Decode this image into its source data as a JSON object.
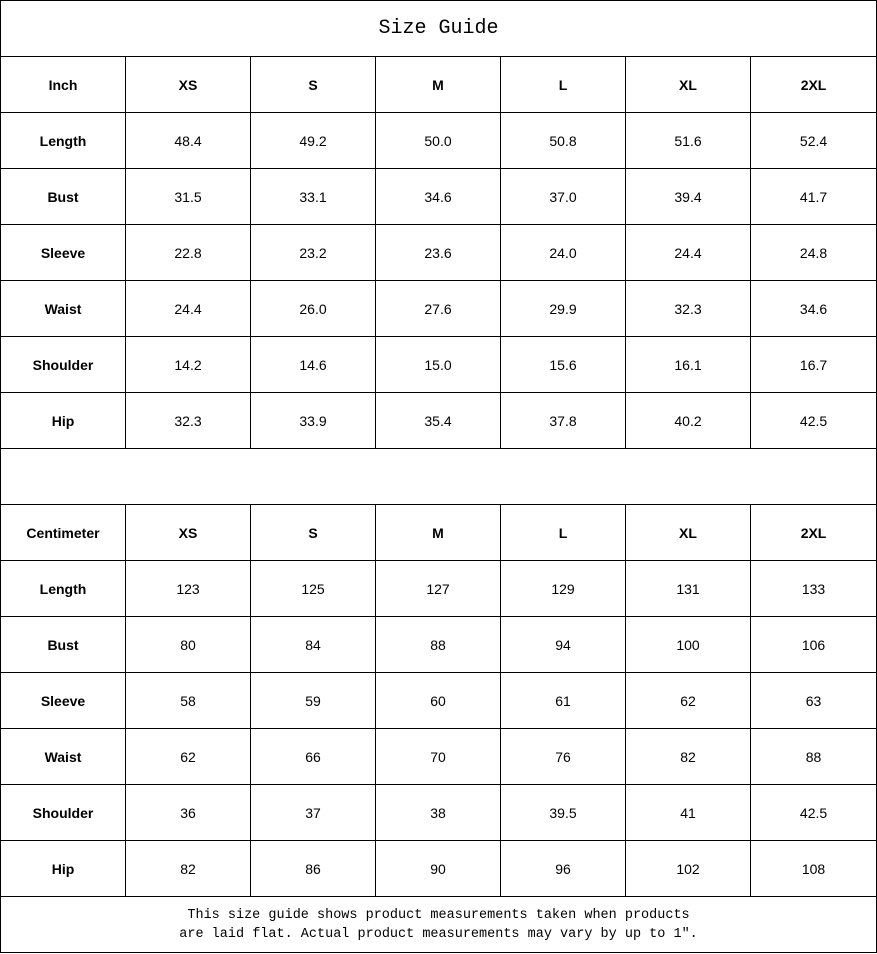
{
  "title": "Size Guide",
  "sizes": [
    "XS",
    "S",
    "M",
    "L",
    "XL",
    "2XL"
  ],
  "inch": {
    "label": "Inch",
    "rows": [
      {
        "name": "Length",
        "values": [
          "48.4",
          "49.2",
          "50.0",
          "50.8",
          "51.6",
          "52.4"
        ]
      },
      {
        "name": "Bust",
        "values": [
          "31.5",
          "33.1",
          "34.6",
          "37.0",
          "39.4",
          "41.7"
        ]
      },
      {
        "name": "Sleeve",
        "values": [
          "22.8",
          "23.2",
          "23.6",
          "24.0",
          "24.4",
          "24.8"
        ]
      },
      {
        "name": "Waist",
        "values": [
          "24.4",
          "26.0",
          "27.6",
          "29.9",
          "32.3",
          "34.6"
        ]
      },
      {
        "name": "Shoulder",
        "values": [
          "14.2",
          "14.6",
          "15.0",
          "15.6",
          "16.1",
          "16.7"
        ]
      },
      {
        "name": "Hip",
        "values": [
          "32.3",
          "33.9",
          "35.4",
          "37.8",
          "40.2",
          "42.5"
        ]
      }
    ]
  },
  "cm": {
    "label": "Centimeter",
    "rows": [
      {
        "name": "Length",
        "values": [
          "123",
          "125",
          "127",
          "129",
          "131",
          "133"
        ]
      },
      {
        "name": "Bust",
        "values": [
          "80",
          "84",
          "88",
          "94",
          "100",
          "106"
        ]
      },
      {
        "name": "Sleeve",
        "values": [
          "58",
          "59",
          "60",
          "61",
          "62",
          "63"
        ]
      },
      {
        "name": "Waist",
        "values": [
          "62",
          "66",
          "70",
          "76",
          "82",
          "88"
        ]
      },
      {
        "name": "Shoulder",
        "values": [
          "36",
          "37",
          "38",
          "39.5",
          "41",
          "42.5"
        ]
      },
      {
        "name": "Hip",
        "values": [
          "82",
          "86",
          "90",
          "96",
          "102",
          "108"
        ]
      }
    ]
  },
  "note_line1": "This size guide shows product measurements taken when products",
  "note_line2": "are laid flat. Actual product measurements may vary by up to 1″."
}
